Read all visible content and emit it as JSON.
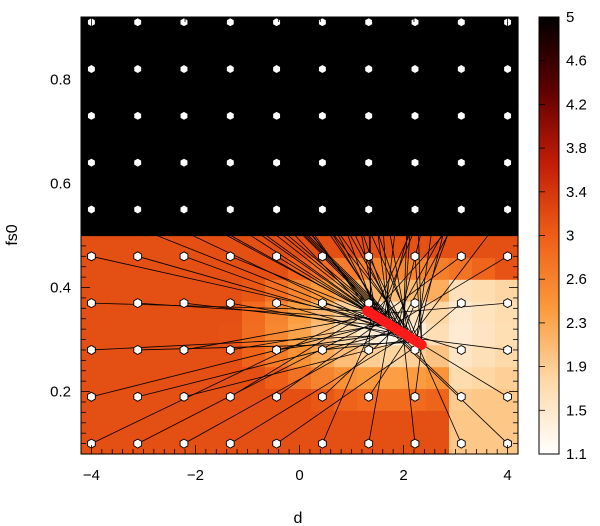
{
  "chart_data": {
    "type": "heatmap",
    "title": "",
    "xlabel": "d",
    "ylabel": "fs0",
    "xlim": [
      -4.2,
      4.2
    ],
    "ylim": [
      0.08,
      0.92
    ],
    "x_ticks": [
      "−4",
      "−2",
      "0",
      "2",
      "4"
    ],
    "x_tick_values": [
      -4,
      -2,
      0,
      2,
      4
    ],
    "y_ticks": [
      "0.2",
      "0.4",
      "0.6",
      "0.8"
    ],
    "y_tick_values": [
      0.2,
      0.4,
      0.6,
      0.8
    ],
    "colorbar": {
      "labels": [
        "5",
        "4.6",
        "4.2",
        "3.8",
        "3.4",
        "3",
        "2.6",
        "2.3",
        "1.9",
        "1.5",
        "1.1"
      ],
      "min": 1.1,
      "max": 5,
      "colors": [
        "#ffffff",
        "#fed9a8",
        "#fb9a3c",
        "#ee5e17",
        "#c21c06",
        "#5e0000",
        "#000000"
      ]
    },
    "grid_points": {
      "x": [
        -4,
        -3.11,
        -2.22,
        -1.33,
        -0.44,
        0.44,
        1.33,
        2.22,
        3.11,
        4
      ],
      "y": [
        0.1,
        0.19,
        0.28,
        0.37,
        0.46,
        0.55,
        0.64,
        0.73,
        0.82,
        0.91
      ]
    },
    "optimum_path": {
      "start": [
        1.3,
        0.355
      ],
      "end": [
        2.35,
        0.29
      ],
      "points": 30,
      "color": "#ff1a1a"
    },
    "boundary_fs0": 0.51
  }
}
